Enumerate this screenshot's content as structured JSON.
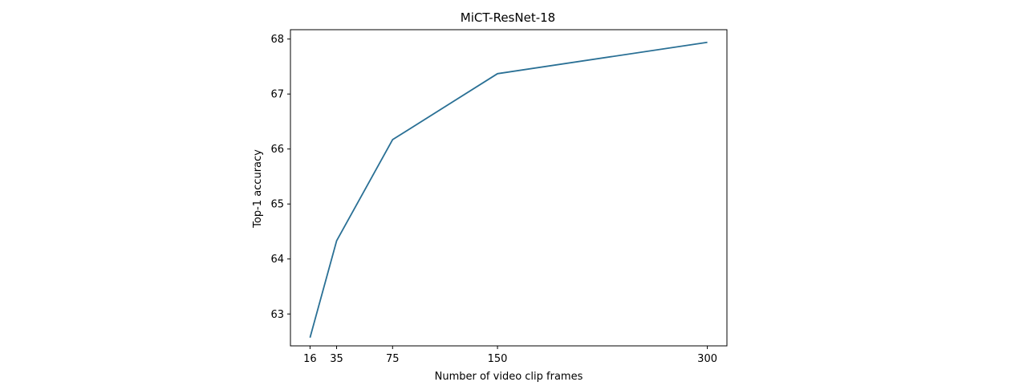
{
  "chart_data": {
    "type": "line",
    "title": "MiCT-ResNet-18",
    "xlabel": "Number of video clip frames",
    "ylabel": "Top-1 accuracy",
    "xlim": [
      2,
      314
    ],
    "ylim": [
      62.42,
      68.17
    ],
    "x_ticks": [
      16,
      35,
      75,
      150,
      300
    ],
    "y_ticks": [
      63,
      64,
      65,
      66,
      67,
      68
    ],
    "grid": false,
    "series": [
      {
        "color": "#2a7095",
        "x": [
          16,
          35,
          75,
          150,
          300
        ],
        "y": [
          62.57,
          64.33,
          66.17,
          67.37,
          67.94
        ]
      }
    ]
  }
}
